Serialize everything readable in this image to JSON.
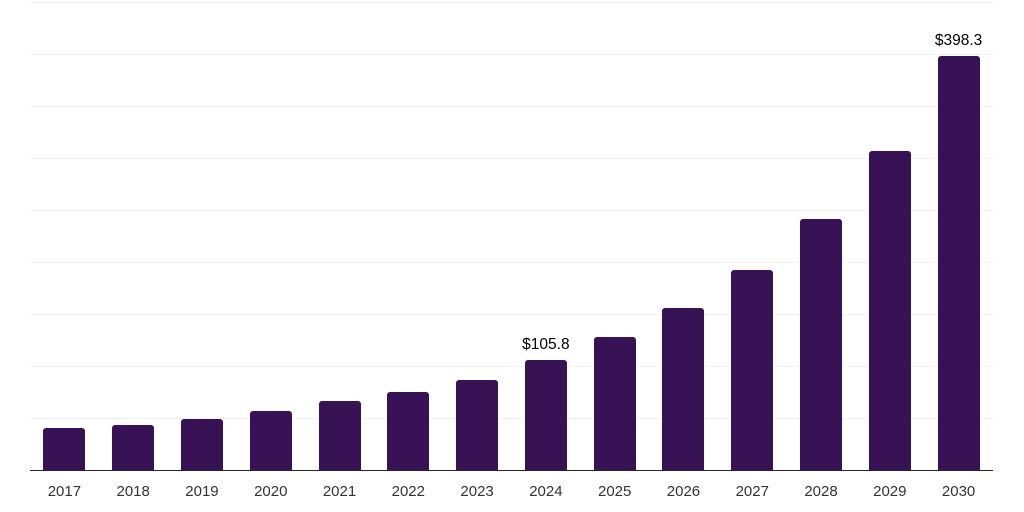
{
  "chart_data": {
    "type": "bar",
    "title": "",
    "xlabel": "",
    "ylabel": "",
    "categories": [
      "2017",
      "2018",
      "2019",
      "2020",
      "2021",
      "2022",
      "2023",
      "2024",
      "2025",
      "2026",
      "2027",
      "2028",
      "2029",
      "2030"
    ],
    "values": [
      40.4,
      43.0,
      49.4,
      56.4,
      66.2,
      74.8,
      86.9,
      105.8,
      128.0,
      155.7,
      192.7,
      241.0,
      306.6,
      398.3
    ],
    "point_labels": [
      "",
      "",
      "",
      "",
      "",
      "",
      "",
      "$105.8",
      "",
      "",
      "",
      "",
      "",
      "$398.3"
    ],
    "ylim": [
      0,
      450
    ],
    "grid_step": 50,
    "grid": true,
    "y_axis_ticks_visible": false,
    "legend": "none",
    "colors": {
      "bar": "#371355",
      "axis": "#262626",
      "grid": "#f2f2f2",
      "tick_label": "#333333",
      "value_label": "#000000"
    }
  }
}
